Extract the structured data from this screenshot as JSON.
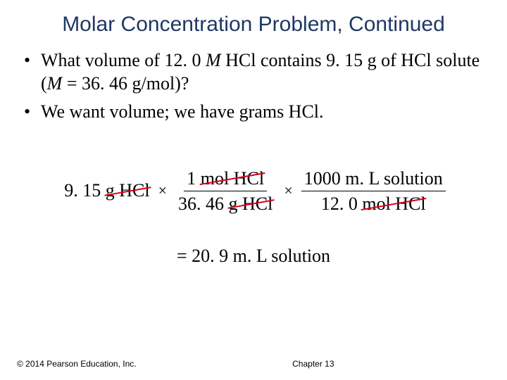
{
  "title": "Molar Concentration Problem, Continued",
  "bullets": [
    {
      "prefix": "What volume of 12. 0 ",
      "italic1": "M",
      "mid1": " HCl contains 9. 15 g of HCl solute (",
      "italic2": "M",
      "suffix": " = 36. 46 g/mol)?"
    },
    {
      "text": "We want volume; we have grams HCl."
    }
  ],
  "calc": {
    "start_value": "9. 15 ",
    "start_unit": "g HCl",
    "frac1_num_val": "1 ",
    "frac1_num_unit": "mol HCl",
    "frac1_den_val": "36. 46 ",
    "frac1_den_unit": "g HCl",
    "frac2_num_val": "1000 m. L solution",
    "frac2_den_val": "12. 0 ",
    "frac2_den_unit": "mol HCl",
    "times": "×"
  },
  "result": "=  20. 9 m. L solution",
  "footer": {
    "copyright": "© 2014 Pearson Education, Inc.",
    "chapter": "Chapter 13"
  },
  "style": {
    "title_color": "#1f3864",
    "strike_color": "#d9001b",
    "background": "#ffffff",
    "title_fontsize": 30,
    "body_fontsize": 26,
    "footer_fontsize": 12
  }
}
